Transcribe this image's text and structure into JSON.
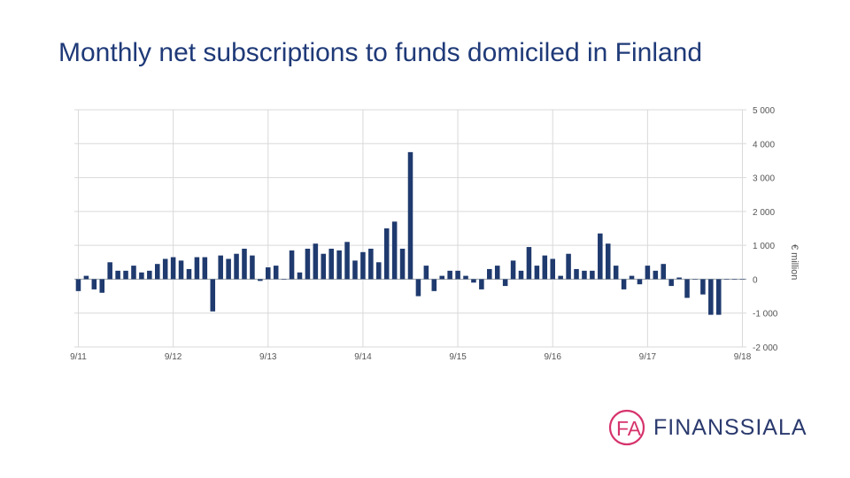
{
  "page": {
    "title": "Monthly net subscriptions to funds domiciled in Finland"
  },
  "logo": {
    "mark": "FA",
    "name": "FINANSSIALA",
    "mark_color": "#d6336c",
    "text_color": "#2b3a6e"
  },
  "colors": {
    "bar": "#1f3a6e",
    "grid": "#d9d9d9",
    "tick_text": "#555555",
    "title": "#1f3a78"
  },
  "chart_data": {
    "type": "bar",
    "title": "Monthly net subscriptions to funds domiciled in Finland",
    "ylabel": "€ million",
    "xlabel": "",
    "ylim": [
      -2000,
      5000
    ],
    "y_ticks": [
      "5 000",
      "4 000",
      "3 000",
      "2 000",
      "1 000",
      "0",
      "-1 000",
      "-2 000"
    ],
    "y_tick_values": [
      5000,
      4000,
      3000,
      2000,
      1000,
      0,
      -1000,
      -2000
    ],
    "x_tick_labels": [
      "9/11",
      "9/12",
      "9/13",
      "9/14",
      "9/15",
      "9/16",
      "9/17",
      "9/18"
    ],
    "x_tick_indices": [
      0,
      12,
      24,
      36,
      48,
      60,
      72,
      84
    ],
    "y_axis_position": "right",
    "legend": "none",
    "grid": true,
    "categories": [
      "9/11",
      "10/11",
      "11/11",
      "12/11",
      "1/12",
      "2/12",
      "3/12",
      "4/12",
      "5/12",
      "6/12",
      "7/12",
      "8/12",
      "9/12",
      "10/12",
      "11/12",
      "12/12",
      "1/13",
      "2/13",
      "3/13",
      "4/13",
      "5/13",
      "6/13",
      "7/13",
      "8/13",
      "9/13",
      "10/13",
      "11/13",
      "12/13",
      "1/14",
      "2/14",
      "3/14",
      "4/14",
      "5/14",
      "6/14",
      "7/14",
      "8/14",
      "9/14",
      "10/14",
      "11/14",
      "12/14",
      "1/15",
      "2/15",
      "3/15",
      "4/15",
      "5/15",
      "6/15",
      "7/15",
      "8/15",
      "9/15",
      "10/15",
      "11/15",
      "12/15",
      "1/16",
      "2/16",
      "3/16",
      "4/16",
      "5/16",
      "6/16",
      "7/16",
      "8/16",
      "9/16",
      "10/16",
      "11/16",
      "12/16",
      "1/17",
      "2/17",
      "3/17",
      "4/17",
      "5/17",
      "6/17",
      "7/17",
      "8/17",
      "9/17",
      "10/17",
      "11/17",
      "12/17",
      "1/18",
      "2/18",
      "3/18",
      "4/18",
      "5/18",
      "6/18",
      "7/18",
      "8/18",
      "9/18"
    ],
    "values": [
      -350,
      100,
      -300,
      -400,
      500,
      250,
      250,
      400,
      200,
      250,
      450,
      600,
      650,
      550,
      300,
      650,
      650,
      -950,
      700,
      600,
      750,
      900,
      700,
      -50,
      350,
      400,
      0,
      850,
      200,
      900,
      1050,
      750,
      900,
      850,
      1100,
      550,
      800,
      900,
      500,
      1500,
      1700,
      900,
      3750,
      -500,
      400,
      -350,
      100,
      250,
      250,
      100,
      -100,
      -300,
      300,
      400,
      -200,
      550,
      250,
      950,
      400,
      700,
      600,
      100,
      750,
      300,
      250,
      250,
      1350,
      1050,
      400,
      -300,
      100,
      -150,
      400,
      250,
      450,
      -200,
      50,
      -550,
      0,
      -450,
      -1050,
      -1050,
      0,
      0,
      0
    ]
  }
}
